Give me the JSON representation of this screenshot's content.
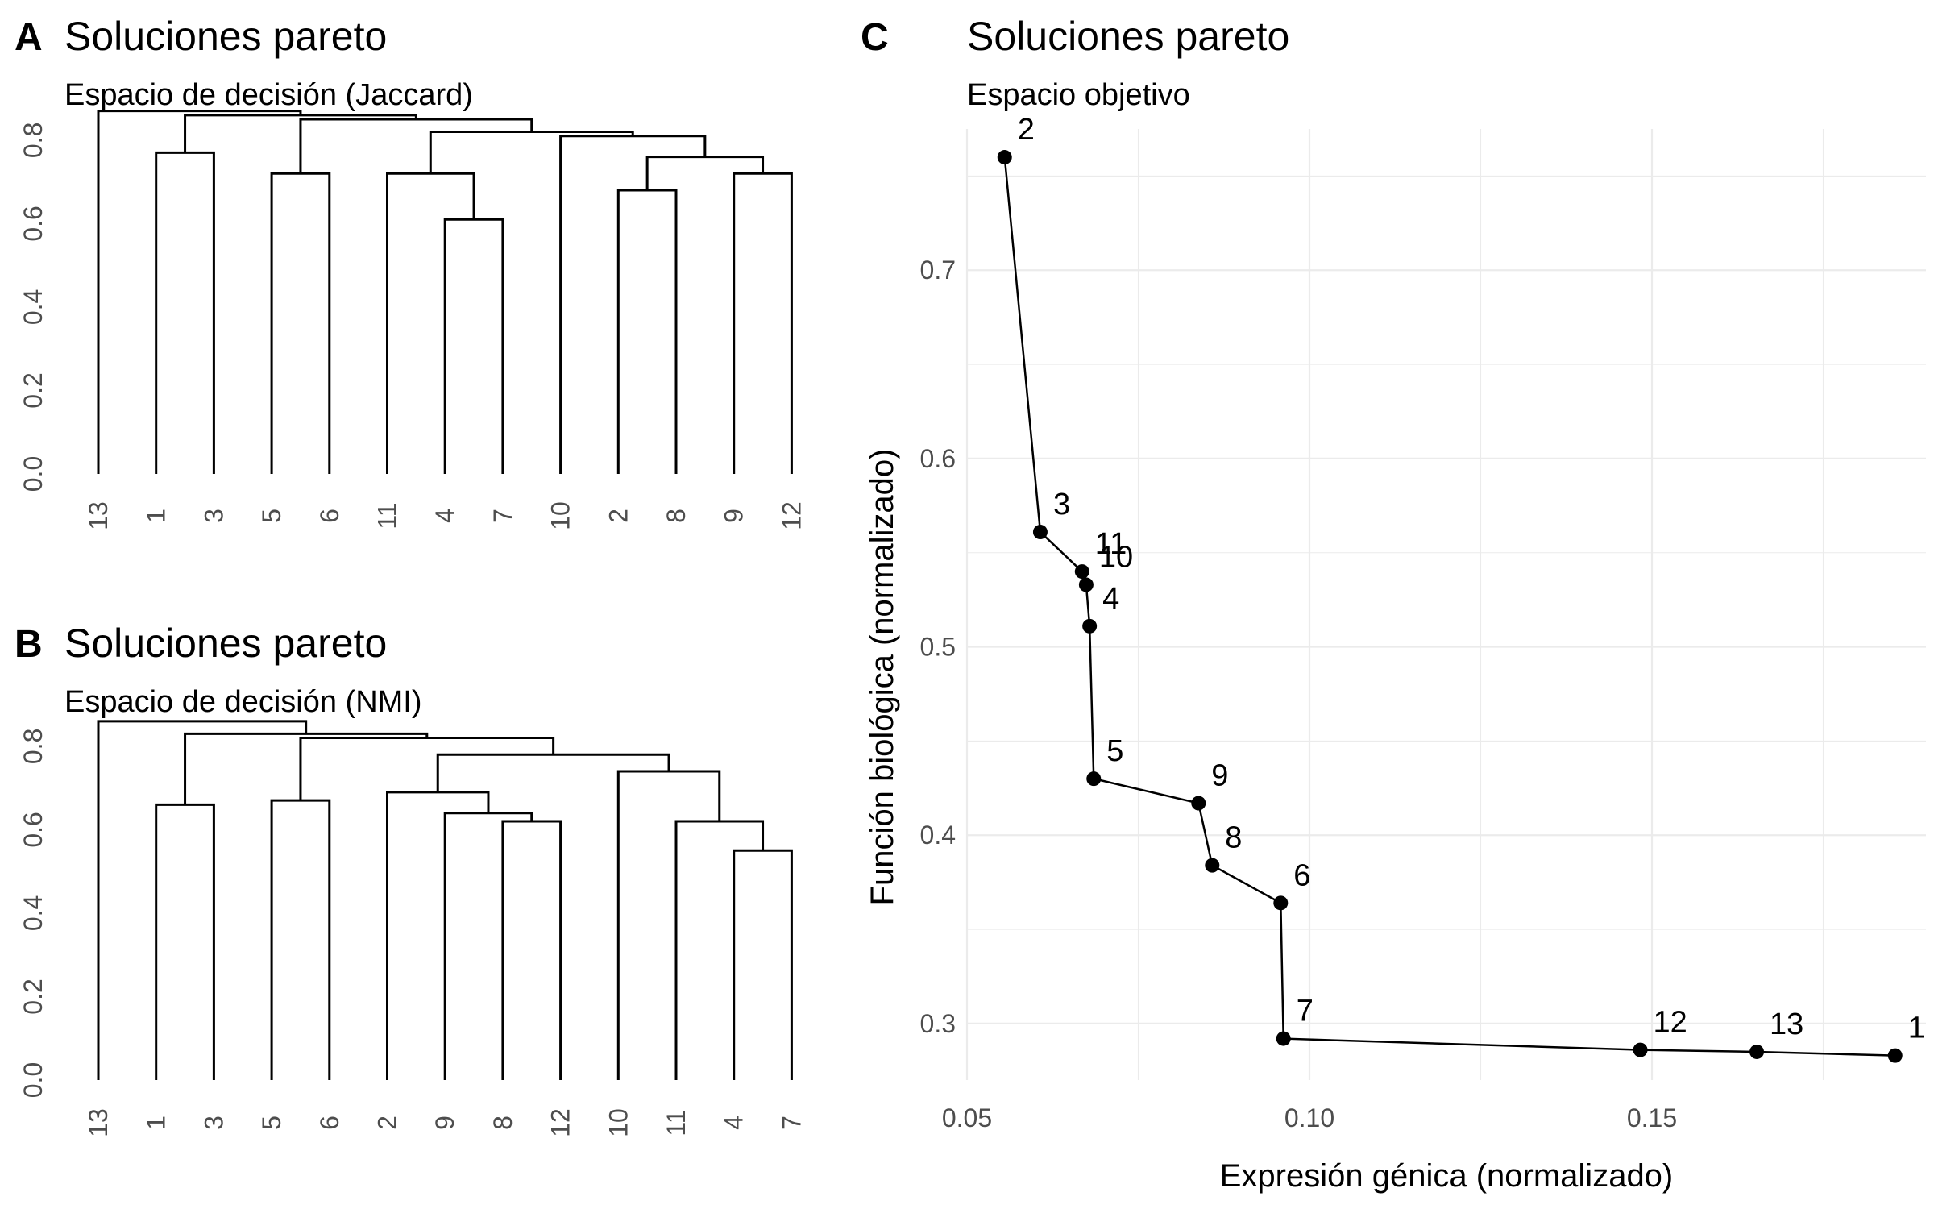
{
  "panels": {
    "A": {
      "letter": "A",
      "title": "Soluciones pareto",
      "subtitle": "Espacio de decisión (Jaccard)"
    },
    "B": {
      "letter": "B",
      "title": "Soluciones pareto",
      "subtitle": "Espacio de decisión (NMI)"
    },
    "C": {
      "letter": "C",
      "title": "Soluciones pareto",
      "subtitle": "Espacio objetivo",
      "xlabel": "Expresión génica (normalizado)",
      "ylabel": "Función biológica (normalizado)"
    }
  },
  "chart_data": [
    {
      "type": "dendrogram",
      "panel": "A",
      "title": "Soluciones pareto",
      "subtitle": "Espacio de decisión (Jaccard)",
      "leaf_order": [
        "13",
        "1",
        "3",
        "5",
        "6",
        "11",
        "4",
        "7",
        "10",
        "2",
        "8",
        "9",
        "12"
      ],
      "y_ticks": [
        "0.0",
        "0.2",
        "0.4",
        "0.6",
        "0.8"
      ],
      "ylim": [
        0,
        0.85
      ],
      "merges": [
        {
          "id": "a1",
          "left": "4",
          "right": "7",
          "height": 0.61
        },
        {
          "id": "a2",
          "left": "2",
          "right": "8",
          "height": 0.68
        },
        {
          "id": "a3",
          "left": "9",
          "right": "12",
          "height": 0.72
        },
        {
          "id": "a4",
          "left": "5",
          "right": "6",
          "height": 0.72
        },
        {
          "id": "a5",
          "left": "11",
          "right": "a1",
          "height": 0.72
        },
        {
          "id": "a6",
          "left": "a2",
          "right": "a3",
          "height": 0.76
        },
        {
          "id": "a7",
          "left": "1",
          "right": "3",
          "height": 0.77
        },
        {
          "id": "a8",
          "left": "10",
          "right": "a6",
          "height": 0.81
        },
        {
          "id": "a9",
          "left": "a5",
          "right": "a8",
          "height": 0.82
        },
        {
          "id": "a10",
          "left": "a4",
          "right": "a9",
          "height": 0.85
        },
        {
          "id": "a11",
          "left": "a7",
          "right": "a10",
          "height": 0.86
        },
        {
          "id": "a12",
          "left": "13",
          "right": "a11",
          "height": 0.87
        }
      ]
    },
    {
      "type": "dendrogram",
      "panel": "B",
      "title": "Soluciones pareto",
      "subtitle": "Espacio de decisión (NMI)",
      "leaf_order": [
        "13",
        "1",
        "3",
        "5",
        "6",
        "2",
        "9",
        "8",
        "12",
        "10",
        "11",
        "4",
        "7"
      ],
      "y_ticks": [
        "0.0",
        "0.2",
        "0.4",
        "0.6",
        "0.8"
      ],
      "ylim": [
        0,
        0.85
      ],
      "merges": [
        {
          "id": "b1",
          "left": "4",
          "right": "7",
          "height": 0.55
        },
        {
          "id": "b2",
          "left": "8",
          "right": "12",
          "height": 0.62
        },
        {
          "id": "b3",
          "left": "11",
          "right": "b1",
          "height": 0.62
        },
        {
          "id": "b4",
          "left": "9",
          "right": "b2",
          "height": 0.64
        },
        {
          "id": "b5",
          "left": "1",
          "right": "3",
          "height": 0.66
        },
        {
          "id": "b6",
          "left": "5",
          "right": "6",
          "height": 0.67
        },
        {
          "id": "b7",
          "left": "2",
          "right": "b4",
          "height": 0.69
        },
        {
          "id": "b8",
          "left": "10",
          "right": "b3",
          "height": 0.74
        },
        {
          "id": "b9",
          "left": "b7",
          "right": "b8",
          "height": 0.78
        },
        {
          "id": "b10",
          "left": "b6",
          "right": "b9",
          "height": 0.82
        },
        {
          "id": "b11",
          "left": "b5",
          "right": "b10",
          "height": 0.83
        },
        {
          "id": "b12",
          "left": "13",
          "right": "b11",
          "height": 0.86
        }
      ]
    },
    {
      "type": "line",
      "panel": "C",
      "title": "Soluciones pareto",
      "subtitle": "Espacio objetivo",
      "xlabel": "Expresión génica (normalizado)",
      "ylabel": "Función biológica (normalizado)",
      "xlim": [
        0.05,
        0.19
      ],
      "ylim": [
        0.27,
        0.775
      ],
      "x_ticks": [
        0.05,
        0.1,
        0.15
      ],
      "x_tick_labels": [
        "0.05",
        "0.10",
        "0.15"
      ],
      "y_ticks": [
        0.3,
        0.4,
        0.5,
        0.6,
        0.7
      ],
      "y_tick_labels": [
        "0.3",
        "0.4",
        "0.5",
        "0.6",
        "0.7"
      ],
      "grid": true,
      "points": [
        {
          "label": "2",
          "x": 0.0555,
          "y": 0.76
        },
        {
          "label": "3",
          "x": 0.0607,
          "y": 0.561
        },
        {
          "label": "11",
          "x": 0.0668,
          "y": 0.54
        },
        {
          "label": "10",
          "x": 0.0674,
          "y": 0.533
        },
        {
          "label": "4",
          "x": 0.0679,
          "y": 0.511
        },
        {
          "label": "5",
          "x": 0.0685,
          "y": 0.43
        },
        {
          "label": "9",
          "x": 0.0838,
          "y": 0.417
        },
        {
          "label": "8",
          "x": 0.0858,
          "y": 0.384
        },
        {
          "label": "6",
          "x": 0.0958,
          "y": 0.364
        },
        {
          "label": "7",
          "x": 0.0962,
          "y": 0.292
        },
        {
          "label": "12",
          "x": 0.1483,
          "y": 0.286
        },
        {
          "label": "13",
          "x": 0.1653,
          "y": 0.285
        },
        {
          "label": "1",
          "x": 0.1855,
          "y": 0.283
        }
      ]
    }
  ]
}
